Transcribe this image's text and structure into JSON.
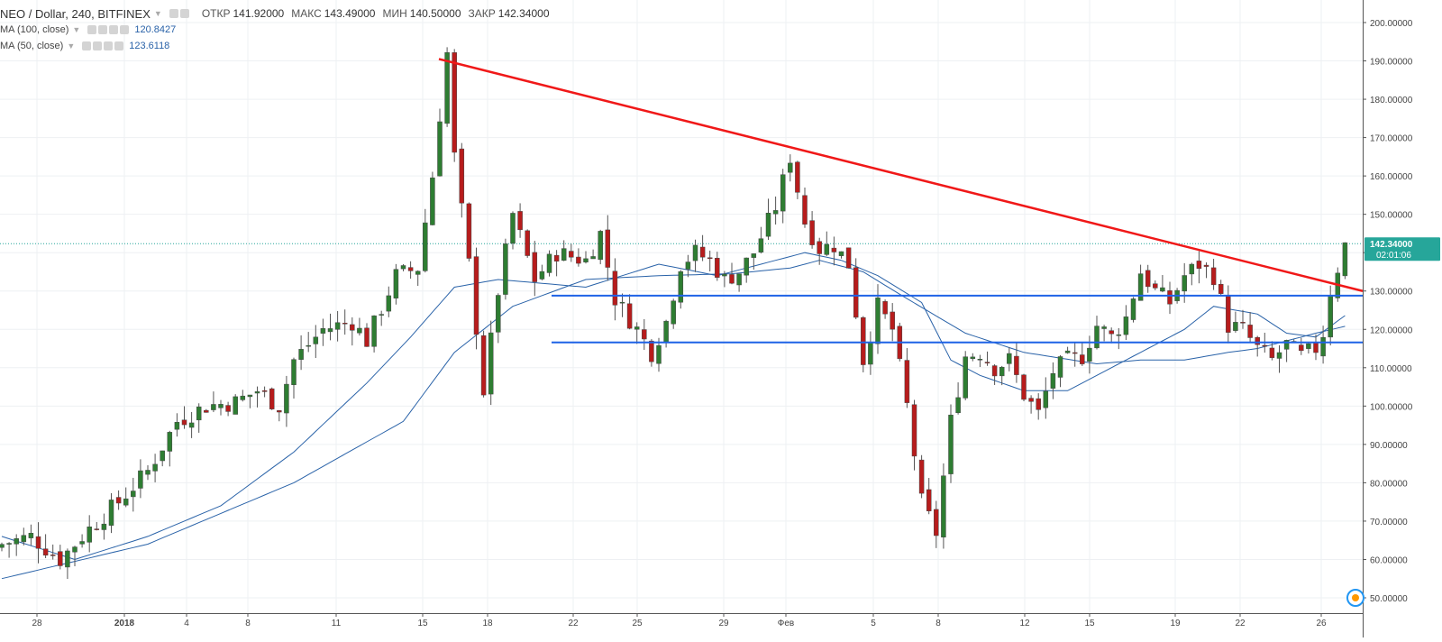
{
  "header": {
    "symbol": "NEO / Dollar, 240, BITFINEX",
    "ohlc": [
      {
        "label": "ОТКР",
        "value": "141.92000"
      },
      {
        "label": "МАКС",
        "value": "143.49000"
      },
      {
        "label": "МИН",
        "value": "140.50000"
      },
      {
        "label": "ЗАКР",
        "value": "142.34000"
      }
    ]
  },
  "indicators": [
    {
      "title": "MA (100, close)",
      "value": "120.8427",
      "color": "#2962a8"
    },
    {
      "title": "MA (50, close)",
      "value": "123.6118",
      "color": "#2962a8"
    }
  ],
  "price_axis": {
    "labels": [
      "200.00000",
      "190.00000",
      "180.00000",
      "170.00000",
      "160.00000",
      "150.00000",
      "140.00000",
      "130.00000",
      "120.00000",
      "110.00000",
      "100.00000",
      "90.00000",
      "80.00000",
      "70.00000",
      "60.00000",
      "50.00000"
    ],
    "last_price_label": "142.34000",
    "countdown": "02:01:06",
    "last_price_color": "#26a69a"
  },
  "time_axis": {
    "labels": [
      "28",
      "2018",
      "4",
      "8",
      "11",
      "15",
      "18",
      "22",
      "25",
      "29",
      "Фев",
      "5",
      "8",
      "12",
      "15",
      "19",
      "22",
      "26"
    ]
  },
  "chart_data": {
    "type": "candlestick",
    "y_range": [
      45,
      205
    ],
    "last_price": 142.34,
    "bullish_color": "#2e7d32",
    "bearish_color": "#b71c1c",
    "ma_color": "#2962a8",
    "trendline_color": "#f01818",
    "level_color": "#1e62e6",
    "levels": [
      128.8,
      116.6
    ],
    "trendline": {
      "from": 190.5,
      "to": 130.0
    },
    "keypoints": [
      [
        0,
        64
      ],
      [
        4,
        66
      ],
      [
        8,
        60
      ],
      [
        12,
        68
      ],
      [
        16,
        75
      ],
      [
        20,
        83
      ],
      [
        24,
        96
      ],
      [
        28,
        100
      ],
      [
        32,
        101
      ],
      [
        35,
        104
      ],
      [
        38,
        100
      ],
      [
        40,
        112
      ],
      [
        44,
        120
      ],
      [
        48,
        122
      ],
      [
        50,
        117
      ],
      [
        54,
        134
      ],
      [
        57,
        136
      ],
      [
        59,
        160
      ],
      [
        61,
        192
      ],
      [
        62,
        165
      ],
      [
        64,
        137
      ],
      [
        66,
        104
      ],
      [
        68,
        130
      ],
      [
        70,
        150
      ],
      [
        73,
        133
      ],
      [
        76,
        140
      ],
      [
        80,
        138
      ],
      [
        82,
        145
      ],
      [
        84,
        128
      ],
      [
        87,
        120
      ],
      [
        89,
        114
      ],
      [
        91,
        122
      ],
      [
        93,
        137
      ],
      [
        95,
        140
      ],
      [
        97,
        138
      ],
      [
        99,
        133
      ],
      [
        101,
        135
      ],
      [
        103,
        140
      ],
      [
        106,
        152
      ],
      [
        108,
        165
      ],
      [
        110,
        148
      ],
      [
        112,
        141
      ],
      [
        114,
        142
      ],
      [
        116,
        137
      ],
      [
        118,
        112
      ],
      [
        120,
        126
      ],
      [
        122,
        120
      ],
      [
        124,
        100
      ],
      [
        126,
        75
      ],
      [
        128,
        67
      ],
      [
        130,
        96
      ],
      [
        132,
        113
      ],
      [
        134,
        114
      ],
      [
        136,
        110
      ],
      [
        138,
        112
      ],
      [
        140,
        103
      ],
      [
        142,
        98
      ],
      [
        144,
        109
      ],
      [
        146,
        112
      ],
      [
        148,
        113
      ],
      [
        150,
        121
      ],
      [
        152,
        118
      ],
      [
        154,
        123
      ],
      [
        156,
        135
      ],
      [
        158,
        130
      ],
      [
        160,
        127
      ],
      [
        162,
        134
      ],
      [
        164,
        137
      ],
      [
        166,
        134
      ],
      [
        168,
        121
      ],
      [
        170,
        120
      ],
      [
        172,
        115
      ],
      [
        174,
        112
      ],
      [
        176,
        116
      ],
      [
        178,
        113
      ],
      [
        180,
        115
      ],
      [
        181,
        119
      ],
      [
        182,
        130
      ],
      [
        183,
        136
      ],
      [
        184,
        142
      ]
    ],
    "ma100_keys": [
      [
        0,
        55
      ],
      [
        20,
        64
      ],
      [
        40,
        80
      ],
      [
        55,
        96
      ],
      [
        62,
        114
      ],
      [
        70,
        126
      ],
      [
        80,
        133
      ],
      [
        90,
        134
      ],
      [
        100,
        134.5
      ],
      [
        108,
        136
      ],
      [
        112,
        138
      ],
      [
        118,
        135
      ],
      [
        124,
        128
      ],
      [
        132,
        119
      ],
      [
        140,
        114
      ],
      [
        150,
        111
      ],
      [
        156,
        112
      ],
      [
        162,
        112
      ],
      [
        168,
        114
      ],
      [
        172,
        115
      ],
      [
        176,
        117
      ],
      [
        180,
        119
      ],
      [
        184,
        120.8
      ]
    ],
    "ma50_keys": [
      [
        0,
        66
      ],
      [
        10,
        60
      ],
      [
        20,
        66
      ],
      [
        30,
        74
      ],
      [
        40,
        88
      ],
      [
        50,
        106
      ],
      [
        56,
        118
      ],
      [
        62,
        131
      ],
      [
        68,
        133
      ],
      [
        80,
        131
      ],
      [
        90,
        137
      ],
      [
        98,
        134
      ],
      [
        104,
        137
      ],
      [
        110,
        140
      ],
      [
        115,
        138
      ],
      [
        120,
        134
      ],
      [
        126,
        127
      ],
      [
        130,
        112
      ],
      [
        134,
        108
      ],
      [
        140,
        104
      ],
      [
        146,
        104
      ],
      [
        150,
        108
      ],
      [
        156,
        114
      ],
      [
        162,
        120
      ],
      [
        166,
        126
      ],
      [
        172,
        124
      ],
      [
        176,
        119
      ],
      [
        180,
        118
      ],
      [
        184,
        123.6
      ]
    ]
  }
}
